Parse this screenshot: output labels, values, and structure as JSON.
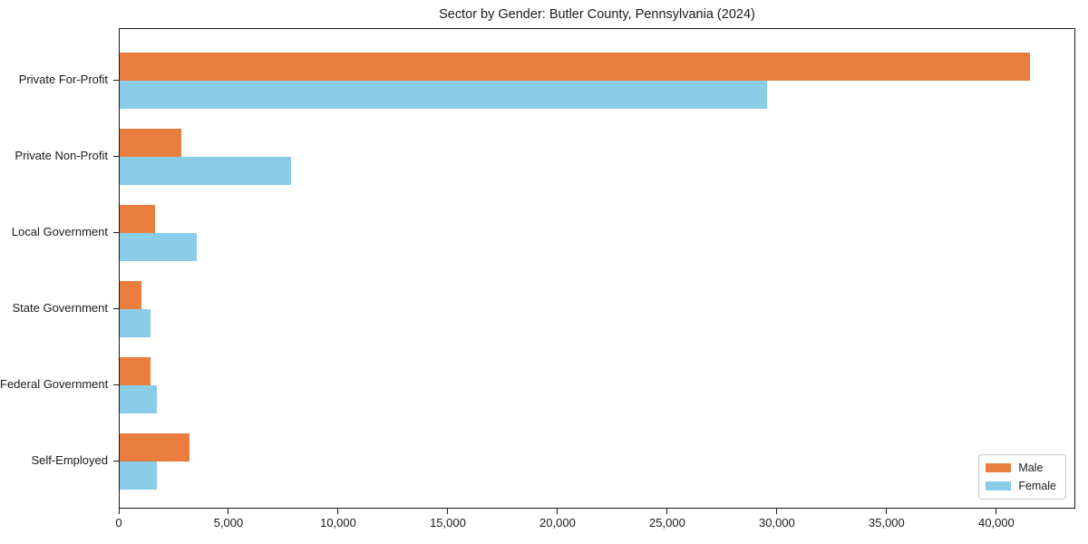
{
  "title": "Sector by Gender: Butler County, Pennsylvania (2024)",
  "chart_data": {
    "type": "bar",
    "orientation": "horizontal",
    "title": "Sector by Gender: Butler County, Pennsylvania (2024)",
    "xlabel": "",
    "ylabel": "",
    "categories": [
      "Private For-Profit",
      "Private Non-Profit",
      "Local Government",
      "State Government",
      "Federal Government",
      "Self-Employed"
    ],
    "series": [
      {
        "name": "Male",
        "color": "#e87d3e",
        "values": [
          41500,
          2800,
          1600,
          1000,
          1400,
          3200
        ]
      },
      {
        "name": "Female",
        "color": "#89cde8",
        "values": [
          29500,
          7800,
          3500,
          1400,
          1700,
          1700
        ]
      }
    ],
    "xlim": [
      0,
      43600
    ],
    "xticks": [
      0,
      5000,
      10000,
      15000,
      20000,
      25000,
      30000,
      35000,
      40000
    ],
    "xtick_labels": [
      "0",
      "5,000",
      "10,000",
      "15,000",
      "20,000",
      "25,000",
      "30,000",
      "35,000",
      "40,000"
    ],
    "grid": false,
    "legend_position": "lower right"
  },
  "legend": {
    "items": [
      {
        "label": "Male",
        "color": "#e87d3e"
      },
      {
        "label": "Female",
        "color": "#89cde8"
      }
    ]
  }
}
